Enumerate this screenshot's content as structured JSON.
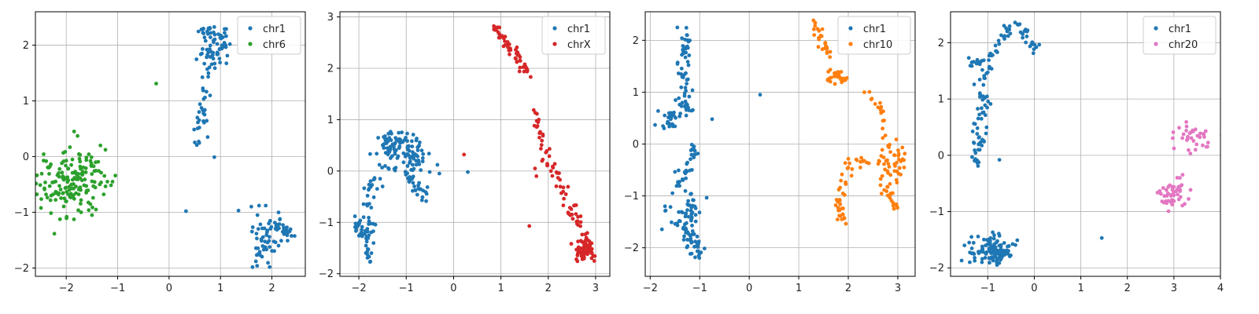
{
  "chart_data": [
    {
      "type": "scatter",
      "xlim": [
        -2.6,
        2.65
      ],
      "ylim": [
        -2.15,
        2.6
      ],
      "xticks": [
        -2,
        -1,
        0,
        1,
        2
      ],
      "yticks": [
        -2,
        -1,
        0,
        1,
        2
      ],
      "grid": true,
      "legend_position": "top-right",
      "series": [
        {
          "name": "chr1",
          "color": "#1f77b4",
          "clusters": [
            {
              "type": "path",
              "path": [
                [
                  0.55,
                  2.25
                ],
                [
                  0.7,
                  2.3
                ],
                [
                  0.8,
                  2.25
                ]
              ],
              "n": 10,
              "spread": 0.05
            },
            {
              "type": "blob",
              "cx": 0.9,
              "cy": 2.0,
              "rx": 0.14,
              "ry": 0.2,
              "n": 55
            },
            {
              "type": "path",
              "path": [
                [
                  0.75,
                  1.9
                ],
                [
                  0.72,
                  1.5
                ],
                [
                  0.68,
                  1.0
                ],
                [
                  0.6,
                  0.6
                ],
                [
                  0.58,
                  0.2
                ]
              ],
              "n": 35,
              "spread": 0.05
            },
            {
              "type": "blob",
              "cx": 1.85,
              "cy": -1.6,
              "rx": 0.13,
              "ry": 0.25,
              "n": 40
            },
            {
              "type": "path",
              "path": [
                [
                  1.9,
                  -1.3
                ],
                [
                  2.1,
                  -1.2
                ],
                [
                  2.3,
                  -1.35
                ],
                [
                  2.4,
                  -1.4
                ]
              ],
              "n": 40,
              "spread": 0.06
            },
            {
              "type": "points",
              "points": [
                [
                  0.88,
                  -0.01
                ],
                [
                  0.33,
                  -0.98
                ],
                [
                  1.35,
                  -0.97
                ],
                [
                  1.6,
                  -0.9
                ],
                [
                  1.75,
                  -0.88
                ],
                [
                  1.72,
                  -1.05
                ],
                [
                  0.75,
                  0.35
                ],
                [
                  0.55,
                  0.7
                ]
              ]
            }
          ]
        },
        {
          "name": "chr6",
          "color": "#2ca02c",
          "clusters": [
            {
              "type": "blob",
              "cx": -1.9,
              "cy": -0.45,
              "rx": 0.32,
              "ry": 0.28,
              "n": 170
            },
            {
              "type": "points",
              "points": [
                [
                  -0.25,
                  1.31
                ],
                [
                  -1.78,
                  0.37
                ],
                [
                  -1.1,
                  -0.45
                ],
                [
                  -1.2,
                  -0.45
                ],
                [
                  -1.35,
                  -0.5
                ]
              ]
            }
          ]
        }
      ]
    },
    {
      "type": "scatter",
      "xlim": [
        -2.4,
        3.3
      ],
      "ylim": [
        -2.05,
        3.1
      ],
      "xticks": [
        -2,
        -1,
        0,
        1,
        2,
        3
      ],
      "yticks": [
        -2,
        -1,
        0,
        1,
        2,
        3
      ],
      "grid": true,
      "legend_position": "top-right",
      "series": [
        {
          "name": "chr1",
          "color": "#1f77b4",
          "clusters": [
            {
              "type": "path",
              "path": [
                [
                  -1.8,
                  -1.8
                ],
                [
                  -1.8,
                  -1.4
                ],
                [
                  -1.75,
                  -1.1
                ],
                [
                  -1.85,
                  -0.7
                ],
                [
                  -1.75,
                  -0.3
                ],
                [
                  -1.55,
                  0.1
                ],
                [
                  -1.35,
                  0.5
                ]
              ],
              "n": 60,
              "spread": 0.07
            },
            {
              "type": "path",
              "path": [
                [
                  -2.05,
                  -0.9
                ],
                [
                  -1.95,
                  -1.2
                ],
                [
                  -1.8,
                  -1.3
                ]
              ],
              "n": 20,
              "spread": 0.06
            },
            {
              "type": "blob",
              "cx": -1.3,
              "cy": 0.55,
              "rx": 0.22,
              "ry": 0.12,
              "n": 45
            },
            {
              "type": "blob",
              "cx": -0.9,
              "cy": 0.3,
              "rx": 0.2,
              "ry": 0.16,
              "n": 60
            },
            {
              "type": "path",
              "path": [
                [
                  -1.4,
                  0.05
                ],
                [
                  -1.1,
                  0.0
                ],
                [
                  -0.9,
                  -0.2
                ],
                [
                  -0.6,
                  -0.5
                ]
              ],
              "n": 35,
              "spread": 0.06
            },
            {
              "type": "points",
              "points": [
                [
                  -0.3,
                  -0.05
                ],
                [
                  0.3,
                  -0.02
                ],
                [
                  -1.5,
                  -0.3
                ],
                [
                  -1.55,
                  -0.15
                ]
              ]
            }
          ]
        },
        {
          "name": "chrX",
          "color": "#d62728",
          "clusters": [
            {
              "type": "path",
              "path": [
                [
                  0.85,
                  2.8
                ],
                [
                  1.0,
                  2.65
                ],
                [
                  1.2,
                  2.4
                ],
                [
                  1.4,
                  2.2
                ],
                [
                  1.55,
                  1.9
                ]
              ],
              "n": 55,
              "spread": 0.05
            },
            {
              "type": "path",
              "path": [
                [
                  1.65,
                  1.2
                ],
                [
                  1.8,
                  0.8
                ],
                [
                  1.9,
                  0.4
                ],
                [
                  2.0,
                  0.05
                ],
                [
                  2.2,
                  0.0
                ],
                [
                  2.4,
                  -0.5
                ],
                [
                  2.6,
                  -1.0
                ],
                [
                  2.8,
                  -1.3
                ]
              ],
              "n": 70,
              "spread": 0.06
            },
            {
              "type": "blob",
              "cx": 2.8,
              "cy": -1.55,
              "rx": 0.14,
              "ry": 0.11,
              "n": 55
            },
            {
              "type": "points",
              "points": [
                [
                  0.22,
                  0.32
                ],
                [
                  1.6,
                  -1.07
                ],
                [
                  1.8,
                  1.0
                ],
                [
                  1.72,
                  0.05
                ],
                [
                  1.75,
                  -0.1
                ]
              ]
            }
          ]
        }
      ]
    },
    {
      "type": "scatter",
      "xlim": [
        -2.1,
        3.35
      ],
      "ylim": [
        -2.55,
        2.55
      ],
      "xticks": [
        -2,
        -1,
        0,
        1,
        2,
        3
      ],
      "yticks": [
        -2,
        -1,
        0,
        1,
        2
      ],
      "grid": true,
      "legend_position": "top-right",
      "series": [
        {
          "name": "chr1",
          "color": "#1f77b4",
          "clusters": [
            {
              "type": "path",
              "path": [
                [
                  -1.3,
                  2.3
                ],
                [
                  -1.3,
                  1.8
                ],
                [
                  -1.35,
                  1.4
                ],
                [
                  -1.2,
                  1.1
                ],
                [
                  -1.35,
                  0.8
                ],
                [
                  -1.2,
                  0.6
                ]
              ],
              "n": 60,
              "spread": 0.07
            },
            {
              "type": "blob",
              "cx": -1.6,
              "cy": 0.5,
              "rx": 0.12,
              "ry": 0.12,
              "n": 25
            },
            {
              "type": "path",
              "path": [
                [
                  -1.1,
                  0.0
                ],
                [
                  -1.2,
                  -0.4
                ],
                [
                  -1.4,
                  -0.7
                ],
                [
                  -1.6,
                  -1.0
                ],
                [
                  -1.7,
                  -1.3
                ]
              ],
              "n": 35,
              "spread": 0.06
            },
            {
              "type": "blob",
              "cx": -1.2,
              "cy": -1.3,
              "rx": 0.13,
              "ry": 0.22,
              "n": 40
            },
            {
              "type": "path",
              "path": [
                [
                  -1.6,
                  -1.5
                ],
                [
                  -1.3,
                  -1.7
                ],
                [
                  -1.1,
                  -1.9
                ],
                [
                  -1.0,
                  -2.2
                ]
              ],
              "n": 45,
              "spread": 0.07
            },
            {
              "type": "points",
              "points": [
                [
                  0.22,
                  0.95
                ],
                [
                  -0.75,
                  0.48
                ]
              ]
            }
          ]
        },
        {
          "name": "chr10",
          "color": "#ff7f0e",
          "clusters": [
            {
              "type": "path",
              "path": [
                [
                  1.35,
                  2.3
                ],
                [
                  1.45,
                  2.0
                ],
                [
                  1.6,
                  1.7
                ]
              ],
              "n": 25,
              "spread": 0.05
            },
            {
              "type": "blob",
              "cx": 1.75,
              "cy": 1.3,
              "rx": 0.1,
              "ry": 0.08,
              "n": 25
            },
            {
              "type": "path",
              "path": [
                [
                  2.35,
                  1.0
                ],
                [
                  2.6,
                  0.8
                ],
                [
                  2.75,
                  0.4
                ]
              ],
              "n": 15,
              "spread": 0.05
            },
            {
              "type": "blob",
              "cx": 2.75,
              "cy": -0.4,
              "rx": 0.12,
              "ry": 0.3,
              "n": 30
            },
            {
              "type": "blob",
              "cx": 3.0,
              "cy": -0.4,
              "rx": 0.1,
              "ry": 0.25,
              "n": 20
            },
            {
              "type": "path",
              "path": [
                [
                  2.7,
                  -0.9
                ],
                [
                  2.85,
                  -1.0
                ],
                [
                  2.95,
                  -1.2
                ]
              ],
              "n": 15,
              "spread": 0.06
            },
            {
              "type": "path",
              "path": [
                [
                  2.4,
                  -0.35
                ],
                [
                  2.1,
                  -0.3
                ],
                [
                  1.95,
                  -0.6
                ],
                [
                  1.85,
                  -1.0
                ],
                [
                  1.85,
                  -1.5
                ]
              ],
              "n": 45,
              "spread": 0.06
            }
          ]
        }
      ]
    },
    {
      "type": "scatter",
      "xlim": [
        -1.8,
        4.0
      ],
      "ylim": [
        -2.15,
        2.55
      ],
      "xticks": [
        -1,
        0,
        1,
        2,
        3,
        4
      ],
      "yticks": [
        -2,
        -1,
        0,
        1,
        2
      ],
      "grid": true,
      "legend_position": "top-right",
      "series": [
        {
          "name": "chr1",
          "color": "#1f77b4",
          "clusters": [
            {
              "type": "path",
              "path": [
                [
                  -1.25,
                  -0.2
                ],
                [
                  -1.2,
                  0.3
                ],
                [
                  -1.1,
                  0.9
                ],
                [
                  -1.05,
                  1.4
                ],
                [
                  -1.0,
                  1.7
                ],
                [
                  -0.8,
                  1.9
                ],
                [
                  -0.6,
                  2.2
                ],
                [
                  -0.4,
                  2.3
                ],
                [
                  -0.2,
                  2.2
                ],
                [
                  -0.1,
                  1.9
                ],
                [
                  0.1,
                  1.9
                ]
              ],
              "n": 110,
              "spread": 0.07
            },
            {
              "type": "path",
              "path": [
                [
                  -1.3,
                  1.6
                ],
                [
                  -1.1,
                  1.75
                ]
              ],
              "n": 12,
              "spread": 0.06
            },
            {
              "type": "blob",
              "cx": -0.9,
              "cy": -1.72,
              "rx": 0.22,
              "ry": 0.13,
              "n": 120
            },
            {
              "type": "points",
              "points": [
                [
                  1.45,
                  -1.47
                ],
                [
                  -0.75,
                  -0.08
                ],
                [
                  -1.5,
                  -1.6
                ],
                [
                  -1.4,
                  -1.55
                ],
                [
                  -1.35,
                  -1.45
                ]
              ]
            }
          ]
        },
        {
          "name": "chr20",
          "color": "#e377c2",
          "clusters": [
            {
              "type": "blob",
              "cx": 3.4,
              "cy": 0.35,
              "rx": 0.2,
              "ry": 0.15,
              "n": 35
            },
            {
              "type": "blob",
              "cx": 3.0,
              "cy": -0.7,
              "rx": 0.18,
              "ry": 0.16,
              "n": 45
            }
          ]
        }
      ]
    }
  ]
}
